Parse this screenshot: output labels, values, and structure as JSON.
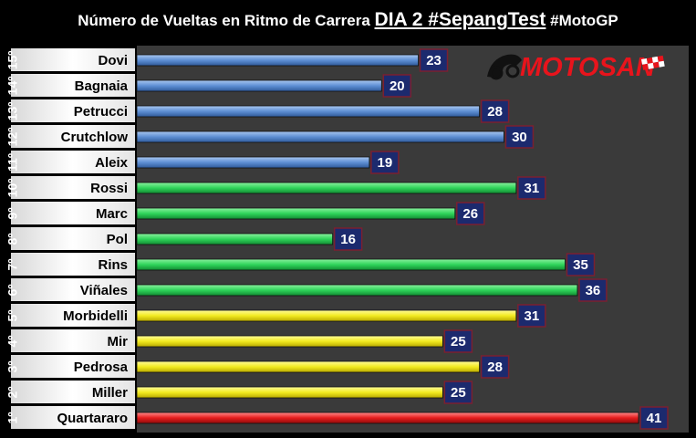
{
  "title": {
    "part1": "Número de Vueltas en Ritmo de Carrera ",
    "part2": "DIA 2 #SepangTest",
    "part3": " #MotoGP"
  },
  "logo": {
    "text": "MOTOSAN"
  },
  "colors": {
    "blue": "#5e8fd4",
    "green": "#2fd45a",
    "yellow": "#f2ea20",
    "red": "#e51c1c",
    "label_box": "#1c2a6e",
    "panel": "#3a3a3a",
    "logo_red": "#e8141c"
  },
  "chart_data": {
    "type": "bar",
    "orientation": "horizontal",
    "title": "Número de Vueltas en Ritmo de Carrera DIA 2 #SepangTest #MotoGP",
    "categories": [
      "Dovi",
      "Bagnaia",
      "Petrucci",
      "Crutchlow",
      "Aleix",
      "Rossi",
      "Marc",
      "Pol",
      "Rins",
      "Viñales",
      "Morbidelli",
      "Mir",
      "Pedrosa",
      "Miller",
      "Quartararo"
    ],
    "ranks": [
      "15º",
      "14º",
      "13º",
      "12º",
      "11º",
      "10º",
      "9º",
      "8º",
      "7º",
      "6º",
      "5º",
      "4º",
      "3º",
      "2º",
      "1º"
    ],
    "values": [
      23,
      20,
      28,
      30,
      19,
      31,
      26,
      16,
      35,
      36,
      31,
      25,
      28,
      25,
      41
    ],
    "bar_colors": [
      "blue",
      "blue",
      "blue",
      "blue",
      "blue",
      "green",
      "green",
      "green",
      "green",
      "green",
      "yellow",
      "yellow",
      "yellow",
      "yellow",
      "red"
    ],
    "xlim": [
      0,
      41
    ],
    "grid": false,
    "legend": "none"
  }
}
